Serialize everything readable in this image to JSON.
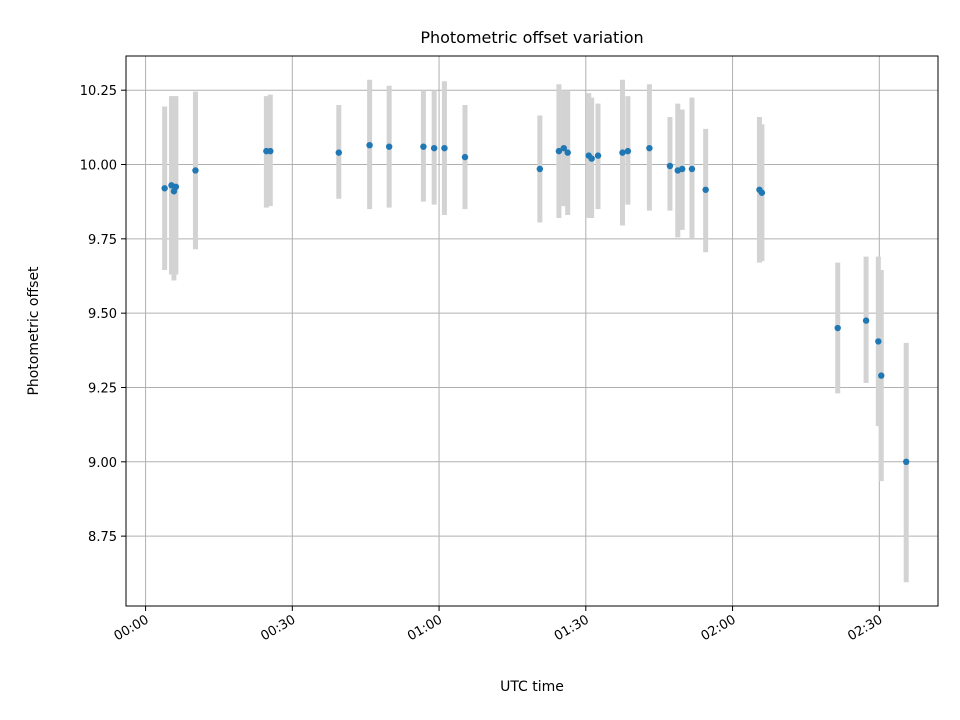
{
  "chart_data": {
    "type": "scatter",
    "title": "Photometric offset variation",
    "xlabel": "UTC time",
    "ylabel": "Photometric offset",
    "x_unit": "minutes",
    "xlim": [
      -4,
      162
    ],
    "ylim": [
      8.515,
      10.365
    ],
    "grid": true,
    "colors": {
      "point": "#1f77b4",
      "errorbar": "#d3d3d3",
      "grid": "#b0b0b0"
    },
    "x_ticks": [
      {
        "value": 0,
        "label": "00:00"
      },
      {
        "value": 30,
        "label": "00:30"
      },
      {
        "value": 60,
        "label": "01:00"
      },
      {
        "value": 90,
        "label": "01:30"
      },
      {
        "value": 120,
        "label": "02:00"
      },
      {
        "value": 150,
        "label": "02:30"
      }
    ],
    "y_ticks": [
      {
        "value": 8.75,
        "label": "8.75"
      },
      {
        "value": 9.0,
        "label": "9.00"
      },
      {
        "value": 9.25,
        "label": "9.25"
      },
      {
        "value": 9.5,
        "label": "9.50"
      },
      {
        "value": 9.75,
        "label": "9.75"
      },
      {
        "value": 10.0,
        "label": "10.00"
      },
      {
        "value": 10.25,
        "label": "10.25"
      }
    ],
    "points": [
      {
        "x": 3.9,
        "y": 9.92,
        "lo": 9.645,
        "hi": 10.195
      },
      {
        "x": 5.3,
        "y": 9.93,
        "lo": 9.63,
        "hi": 10.23
      },
      {
        "x": 5.8,
        "y": 9.91,
        "lo": 9.61,
        "hi": 10.23
      },
      {
        "x": 6.2,
        "y": 9.925,
        "lo": 9.63,
        "hi": 10.23
      },
      {
        "x": 10.2,
        "y": 9.98,
        "lo": 9.715,
        "hi": 10.245
      },
      {
        "x": 24.7,
        "y": 10.045,
        "lo": 9.855,
        "hi": 10.23
      },
      {
        "x": 25.5,
        "y": 10.045,
        "lo": 9.86,
        "hi": 10.235
      },
      {
        "x": 39.5,
        "y": 10.04,
        "lo": 9.885,
        "hi": 10.2
      },
      {
        "x": 45.8,
        "y": 10.065,
        "lo": 9.85,
        "hi": 10.285
      },
      {
        "x": 49.8,
        "y": 10.06,
        "lo": 9.855,
        "hi": 10.265
      },
      {
        "x": 56.8,
        "y": 10.06,
        "lo": 9.875,
        "hi": 10.25
      },
      {
        "x": 59.0,
        "y": 10.055,
        "lo": 9.865,
        "hi": 10.25
      },
      {
        "x": 61.1,
        "y": 10.055,
        "lo": 9.83,
        "hi": 10.28
      },
      {
        "x": 65.3,
        "y": 10.025,
        "lo": 9.85,
        "hi": 10.2
      },
      {
        "x": 80.6,
        "y": 9.985,
        "lo": 9.805,
        "hi": 10.165
      },
      {
        "x": 84.5,
        "y": 10.045,
        "lo": 9.82,
        "hi": 10.27
      },
      {
        "x": 85.5,
        "y": 10.055,
        "lo": 9.86,
        "hi": 10.25
      },
      {
        "x": 86.3,
        "y": 10.04,
        "lo": 9.83,
        "hi": 10.25
      },
      {
        "x": 90.6,
        "y": 10.03,
        "lo": 9.82,
        "hi": 10.24
      },
      {
        "x": 91.2,
        "y": 10.02,
        "lo": 9.82,
        "hi": 10.225
      },
      {
        "x": 92.5,
        "y": 10.03,
        "lo": 9.85,
        "hi": 10.205
      },
      {
        "x": 97.5,
        "y": 10.04,
        "lo": 9.795,
        "hi": 10.285
      },
      {
        "x": 98.6,
        "y": 10.045,
        "lo": 9.865,
        "hi": 10.23
      },
      {
        "x": 103.0,
        "y": 10.055,
        "lo": 9.845,
        "hi": 10.27
      },
      {
        "x": 107.2,
        "y": 9.995,
        "lo": 9.845,
        "hi": 10.16
      },
      {
        "x": 108.8,
        "y": 9.98,
        "lo": 9.755,
        "hi": 10.205
      },
      {
        "x": 109.7,
        "y": 9.985,
        "lo": 9.78,
        "hi": 10.185
      },
      {
        "x": 111.7,
        "y": 9.985,
        "lo": 9.75,
        "hi": 10.225
      },
      {
        "x": 114.5,
        "y": 9.915,
        "lo": 9.705,
        "hi": 10.12
      },
      {
        "x": 125.5,
        "y": 9.915,
        "lo": 9.67,
        "hi": 10.16
      },
      {
        "x": 126.0,
        "y": 9.905,
        "lo": 9.675,
        "hi": 10.135
      },
      {
        "x": 141.5,
        "y": 9.45,
        "lo": 9.23,
        "hi": 9.67
      },
      {
        "x": 147.3,
        "y": 9.475,
        "lo": 9.265,
        "hi": 9.69
      },
      {
        "x": 149.8,
        "y": 9.405,
        "lo": 9.12,
        "hi": 9.69
      },
      {
        "x": 150.4,
        "y": 9.29,
        "lo": 8.935,
        "hi": 9.645
      },
      {
        "x": 155.5,
        "y": 9.0,
        "lo": 8.595,
        "hi": 9.4
      }
    ]
  }
}
